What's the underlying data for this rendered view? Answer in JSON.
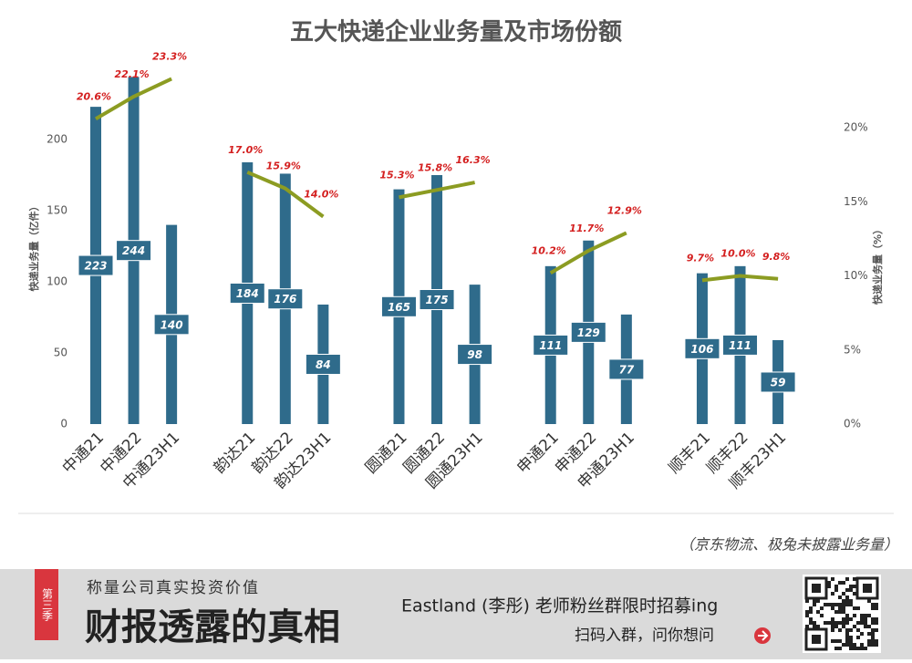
{
  "chart_data": {
    "type": "bar",
    "title": "五大快递企业业务量及市场份额",
    "categories": [
      "中通21",
      "中通22",
      "中通23H1",
      null,
      "韵达21",
      "韵达22",
      "韵达23H1",
      null,
      "圆通21",
      "圆通22",
      "圆通23H1",
      null,
      "申通21",
      "申通22",
      "申通23H1",
      null,
      "顺丰21",
      "顺丰22",
      "顺丰23H1"
    ],
    "series": [
      {
        "type": "bar",
        "color": "#2f6b8b",
        "values": [
          223,
          244,
          140,
          null,
          184,
          176,
          84,
          null,
          165,
          175,
          98,
          null,
          111,
          129,
          77,
          null,
          106,
          111,
          59
        ]
      },
      {
        "type": "line",
        "axis": "y2",
        "color": "#8c9c22",
        "values": [
          20.6,
          22.1,
          23.3,
          null,
          17.0,
          15.9,
          14.0,
          null,
          15.3,
          15.8,
          16.3,
          null,
          10.2,
          11.7,
          12.9,
          null,
          9.7,
          10.0,
          9.8
        ],
        "value_labels": [
          "20.6%",
          "22.1%",
          "23.3%",
          null,
          "17.0%",
          "15.9%",
          "14.0%",
          null,
          "15.3%",
          "15.8%",
          "16.3%",
          null,
          "10.2%",
          "11.7%",
          "12.9%",
          null,
          "9.7%",
          "10.0%",
          "9.8%"
        ]
      }
    ],
    "ylabel": "快递业务量（亿件）",
    "y2label": "快递业务量（%）",
    "ylim": [
      0,
      250
    ],
    "yticks": [
      0,
      50,
      100,
      150,
      200
    ],
    "y2lim": [
      0,
      24
    ],
    "y2ticks": [
      {
        "value": 0,
        "label": "0%"
      },
      {
        "value": 5,
        "label": "5%"
      },
      {
        "value": 10,
        "label": "10%"
      },
      {
        "value": 15,
        "label": "15%"
      },
      {
        "value": 20,
        "label": "20%"
      }
    ],
    "note": "（京东物流、极兔未披露业务量）"
  },
  "banner": {
    "ribbon": "第三季",
    "slogan": "称量公司真实投资价值",
    "headline": "财报透露的真相",
    "recruit": "Eastland (李彤) 老师粉丝群限时招募ing",
    "action": "扫码入群，问你想问"
  }
}
